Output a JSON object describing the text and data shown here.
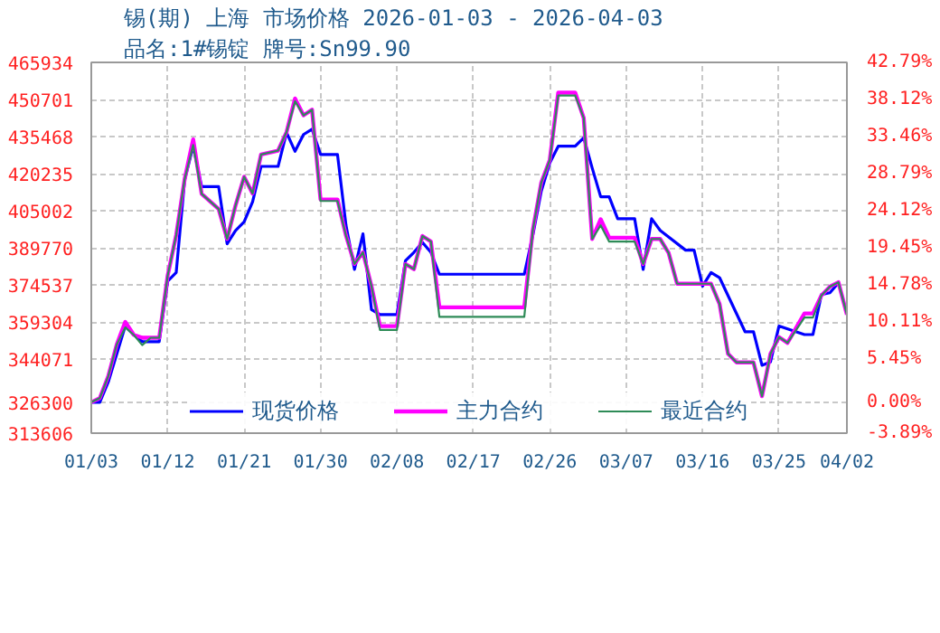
{
  "chart_data": {
    "type": "line",
    "title": "锡(期) 上海 市场价格 2026-01-03 - 2026-04-03",
    "subtitle": "品名:1#锡锭 牌号:Sn99.90",
    "xlim": [
      "2026-01-03",
      "2026-04-02"
    ],
    "xticks": [
      {
        "value": "2026-01-03",
        "label": "01/03"
      },
      {
        "value": "2026-01-12",
        "label": "01/12"
      },
      {
        "value": "2026-01-21",
        "label": "01/21"
      },
      {
        "value": "2026-01-30",
        "label": "01/30"
      },
      {
        "value": "2026-02-08",
        "label": "02/08"
      },
      {
        "value": "2026-02-17",
        "label": "02/17"
      },
      {
        "value": "2026-02-26",
        "label": "02/26"
      },
      {
        "value": "2026-03-07",
        "label": "03/07"
      },
      {
        "value": "2026-03-16",
        "label": "03/16"
      },
      {
        "value": "2026-03-25",
        "label": "03/25"
      },
      {
        "value": "2026-04-02",
        "label": "04/02"
      }
    ],
    "ylim": [
      313606,
      465934
    ],
    "yticks": [
      313606,
      326300,
      344071,
      359304,
      374537,
      389770,
      405002,
      420235,
      435468,
      450701,
      465934
    ],
    "y2lim": [
      -3.89,
      42.79
    ],
    "y2ticks": [
      {
        "value": -3.89,
        "label": "-3.89%"
      },
      {
        "value": 0,
        "label": "0.00%"
      },
      {
        "value": 5.45,
        "label": "5.45%"
      },
      {
        "value": 10.11,
        "label": "10.11%"
      },
      {
        "value": 14.78,
        "label": "14.78%"
      },
      {
        "value": 19.45,
        "label": "19.45%"
      },
      {
        "value": 24.12,
        "label": "24.12%"
      },
      {
        "value": 28.79,
        "label": "28.79%"
      },
      {
        "value": 33.46,
        "label": "33.46%"
      },
      {
        "value": 38.12,
        "label": "38.12%"
      },
      {
        "value": 42.79,
        "label": "42.79%"
      }
    ],
    "grid": true,
    "legend": "bottom",
    "line_style": "solid",
    "marker": "none",
    "series": [
      {
        "name": "现货价格",
        "color": "#0000ff",
        "x": [
          "2026-01-03",
          "2026-01-04",
          "2026-01-05",
          "2026-01-07",
          "2026-01-08",
          "2026-01-09",
          "2026-01-11",
          "2026-01-12",
          "2026-01-13",
          "2026-01-14",
          "2026-01-15",
          "2026-01-16",
          "2026-01-18",
          "2026-01-19",
          "2026-01-20",
          "2026-01-21",
          "2026-01-22",
          "2026-01-23",
          "2026-01-25",
          "2026-01-26",
          "2026-01-27",
          "2026-01-28",
          "2026-01-29",
          "2026-01-30",
          "2026-02-01",
          "2026-02-02",
          "2026-02-03",
          "2026-02-04",
          "2026-02-05",
          "2026-02-06",
          "2026-02-08",
          "2026-02-09",
          "2026-02-10",
          "2026-02-11",
          "2026-02-12",
          "2026-02-13",
          "2026-02-23",
          "2026-02-24",
          "2026-02-25",
          "2026-02-26",
          "2026-02-27",
          "2026-03-01",
          "2026-03-02",
          "2026-03-03",
          "2026-03-04",
          "2026-03-05",
          "2026-03-06",
          "2026-03-08",
          "2026-03-09",
          "2026-03-10",
          "2026-03-11",
          "2026-03-14",
          "2026-03-15",
          "2026-03-16",
          "2026-03-17",
          "2026-03-18",
          "2026-03-21",
          "2026-03-22",
          "2026-03-23",
          "2026-03-24",
          "2026-03-25",
          "2026-03-28",
          "2026-03-29",
          "2026-03-30",
          "2026-03-31",
          "2026-04-01"
        ],
        "values": [
          326300,
          326300,
          334600,
          357600,
          354000,
          351200,
          351200,
          376100,
          379600,
          417700,
          431500,
          414900,
          414900,
          391400,
          396900,
          400400,
          408700,
          423200,
          423200,
          437100,
          429400,
          436300,
          438500,
          428100,
          428100,
          399000,
          380900,
          395500,
          364400,
          362300,
          362300,
          384400,
          387900,
          392000,
          387900,
          378900,
          378900,
          394800,
          413000,
          424600,
          431500,
          431500,
          435000,
          422500,
          410700,
          410700,
          401700,
          401700,
          380900,
          401700,
          396900,
          388800,
          388800,
          374000,
          379600,
          377500,
          355300,
          355300,
          341500,
          342900,
          357600,
          354100,
          354100,
          370600,
          371300,
          375400
        ]
      },
      {
        "name": "主力合约",
        "color": "#ff00ff",
        "x": [
          "2026-01-03",
          "2026-01-04",
          "2026-01-05",
          "2026-01-06",
          "2026-01-07",
          "2026-01-08",
          "2026-01-09",
          "2026-01-11",
          "2026-01-12",
          "2026-01-13",
          "2026-01-14",
          "2026-01-15",
          "2026-01-16",
          "2026-01-18",
          "2026-01-19",
          "2026-01-20",
          "2026-01-21",
          "2026-01-22",
          "2026-01-23",
          "2026-01-25",
          "2026-01-26",
          "2026-01-27",
          "2026-01-28",
          "2026-01-29",
          "2026-01-30",
          "2026-02-01",
          "2026-02-02",
          "2026-02-03",
          "2026-02-04",
          "2026-02-05",
          "2026-02-06",
          "2026-02-08",
          "2026-02-09",
          "2026-02-10",
          "2026-02-11",
          "2026-02-12",
          "2026-02-13",
          "2026-02-23",
          "2026-02-24",
          "2026-02-25",
          "2026-02-26",
          "2026-02-27",
          "2026-03-01",
          "2026-03-02",
          "2026-03-03",
          "2026-03-04",
          "2026-03-05",
          "2026-03-08",
          "2026-03-09",
          "2026-03-10",
          "2026-03-11",
          "2026-03-12",
          "2026-03-13",
          "2026-03-17",
          "2026-03-18",
          "2026-03-19",
          "2026-03-20",
          "2026-03-22",
          "2026-03-23",
          "2026-03-24",
          "2026-03-25",
          "2026-03-26",
          "2026-03-28",
          "2026-03-29",
          "2026-03-30",
          "2026-03-31",
          "2026-04-01",
          "2026-04-02"
        ],
        "values": [
          326300,
          328000,
          337000,
          350000,
          359300,
          354000,
          352800,
          352800,
          378400,
          395000,
          418000,
          434300,
          411900,
          405700,
          393400,
          407300,
          418900,
          412100,
          428100,
          429700,
          437300,
          451100,
          444200,
          446500,
          409600,
          409600,
          394800,
          383100,
          387900,
          374000,
          357600,
          357600,
          383100,
          381000,
          394600,
          392300,
          365300,
          365300,
          396900,
          416500,
          425800,
          453500,
          453500,
          443100,
          393400,
          401500,
          393900,
          393900,
          383100,
          393400,
          393400,
          387700,
          375000,
          375000,
          366700,
          346200,
          342700,
          342700,
          328800,
          346200,
          353100,
          350700,
          362800,
          362800,
          370200,
          373800,
          375600,
          362300
        ]
      },
      {
        "name": "最近合约",
        "color": "#2e8b57",
        "x": [
          "2026-01-03",
          "2026-01-04",
          "2026-01-05",
          "2026-01-06",
          "2026-01-07",
          "2026-01-08",
          "2026-01-09",
          "2026-01-10",
          "2026-01-11",
          "2026-01-12",
          "2026-01-13",
          "2026-01-14",
          "2026-01-15",
          "2026-01-16",
          "2026-01-18",
          "2026-01-19",
          "2026-01-20",
          "2026-01-21",
          "2026-01-22",
          "2026-01-23",
          "2026-01-25",
          "2026-01-26",
          "2026-01-27",
          "2026-01-28",
          "2026-01-29",
          "2026-01-30",
          "2026-02-01",
          "2026-02-02",
          "2026-02-03",
          "2026-02-04",
          "2026-02-05",
          "2026-02-06",
          "2026-02-08",
          "2026-02-09",
          "2026-02-10",
          "2026-02-11",
          "2026-02-12",
          "2026-02-13",
          "2026-02-23",
          "2026-02-24",
          "2026-02-25",
          "2026-02-26",
          "2026-02-27",
          "2026-03-01",
          "2026-03-02",
          "2026-03-03",
          "2026-03-04",
          "2026-03-05",
          "2026-03-08",
          "2026-03-09",
          "2026-03-10",
          "2026-03-11",
          "2026-03-12",
          "2026-03-13",
          "2026-03-17",
          "2026-03-18",
          "2026-03-19",
          "2026-03-20",
          "2026-03-22",
          "2026-03-23",
          "2026-03-24",
          "2026-03-25",
          "2026-03-26",
          "2026-03-28",
          "2026-03-29",
          "2026-03-30",
          "2026-03-31",
          "2026-04-01",
          "2026-04-02"
        ],
        "values": [
          326300,
          328000,
          337000,
          350000,
          357000,
          354000,
          349800,
          352800,
          352800,
          378400,
          395000,
          418000,
          432000,
          411900,
          405700,
          393400,
          407300,
          418900,
          412100,
          428100,
          429700,
          437300,
          450000,
          444200,
          446500,
          409000,
          409000,
          394800,
          383100,
          387900,
          374000,
          356000,
          356000,
          383100,
          381000,
          394600,
          392300,
          361400,
          361400,
          396900,
          416500,
          425800,
          452300,
          452300,
          443100,
          393400,
          399000,
          392300,
          392300,
          383100,
          393400,
          393400,
          387700,
          375000,
          375000,
          366700,
          346200,
          342700,
          342700,
          328800,
          346200,
          353100,
          350700,
          361100,
          361100,
          370200,
          373800,
          375600,
          362300
        ]
      }
    ]
  }
}
